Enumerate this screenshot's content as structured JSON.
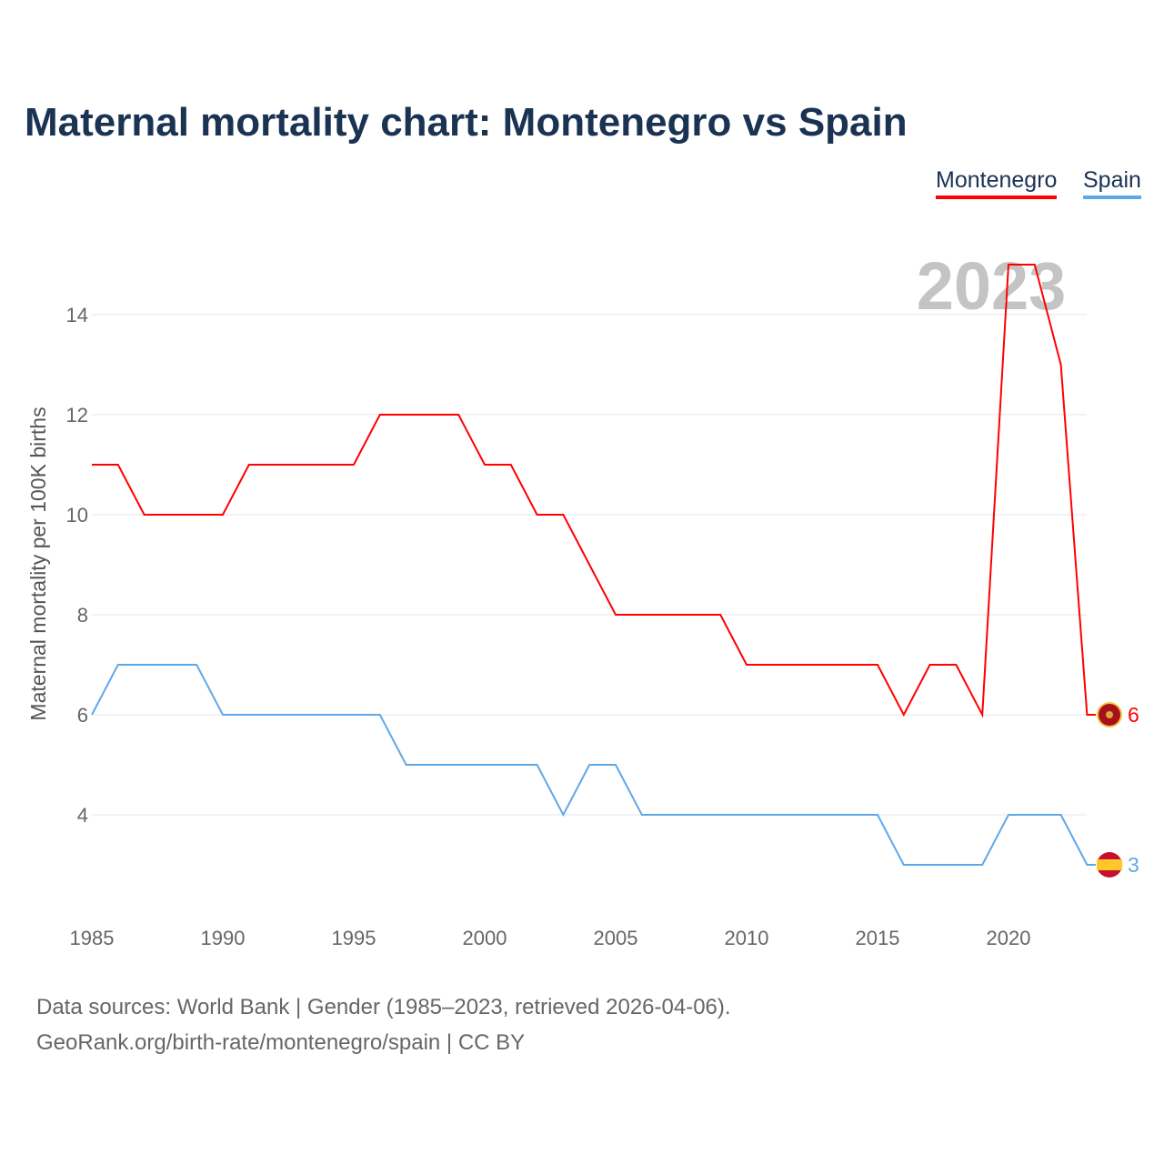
{
  "title": "Maternal mortality chart: Montenegro vs Spain",
  "legend": [
    "Montenegro",
    "Spain"
  ],
  "year_label": "2023",
  "source_lines": [
    "Data sources: World Bank | Gender (1985–2023, retrieved 2026-04-06).",
    "GeoRank.org/birth-rate/montenegro/spain | CC BY"
  ],
  "chart_data": {
    "type": "line",
    "title": "Maternal mortality chart: Montenegro vs Spain",
    "xlabel": "",
    "ylabel": "Maternal mortality per 100K births",
    "xlim": [
      1985,
      2023
    ],
    "ylim": [
      2,
      15
    ],
    "yticks": [
      4,
      6,
      8,
      10,
      12,
      14
    ],
    "xticks": [
      1985,
      1990,
      1995,
      2000,
      2005,
      2010,
      2015,
      2020
    ],
    "grid": true,
    "legend_position": "top-right",
    "x": [
      1985,
      1986,
      1987,
      1988,
      1989,
      1990,
      1991,
      1992,
      1993,
      1994,
      1995,
      1996,
      1997,
      1998,
      1999,
      2000,
      2001,
      2002,
      2003,
      2004,
      2005,
      2006,
      2007,
      2008,
      2009,
      2010,
      2011,
      2012,
      2013,
      2014,
      2015,
      2016,
      2017,
      2018,
      2019,
      2020,
      2021,
      2022,
      2023
    ],
    "series": [
      {
        "name": "Montenegro",
        "color": "#ff0000",
        "end_label": "6",
        "values": [
          11,
          11,
          10,
          10,
          10,
          10,
          11,
          11,
          11,
          11,
          11,
          12,
          12,
          12,
          12,
          11,
          11,
          10,
          10,
          9,
          8,
          8,
          8,
          8,
          8,
          7,
          7,
          7,
          7,
          7,
          7,
          6,
          7,
          7,
          6,
          15,
          15,
          13,
          6
        ]
      },
      {
        "name": "Spain",
        "color": "#5fa8e8",
        "end_label": "3",
        "values": [
          6,
          7,
          7,
          7,
          7,
          6,
          6,
          6,
          6,
          6,
          6,
          6,
          5,
          5,
          5,
          5,
          5,
          5,
          4,
          5,
          5,
          4,
          4,
          4,
          4,
          4,
          4,
          4,
          4,
          4,
          4,
          3,
          3,
          3,
          3,
          4,
          4,
          4,
          3
        ]
      }
    ]
  }
}
